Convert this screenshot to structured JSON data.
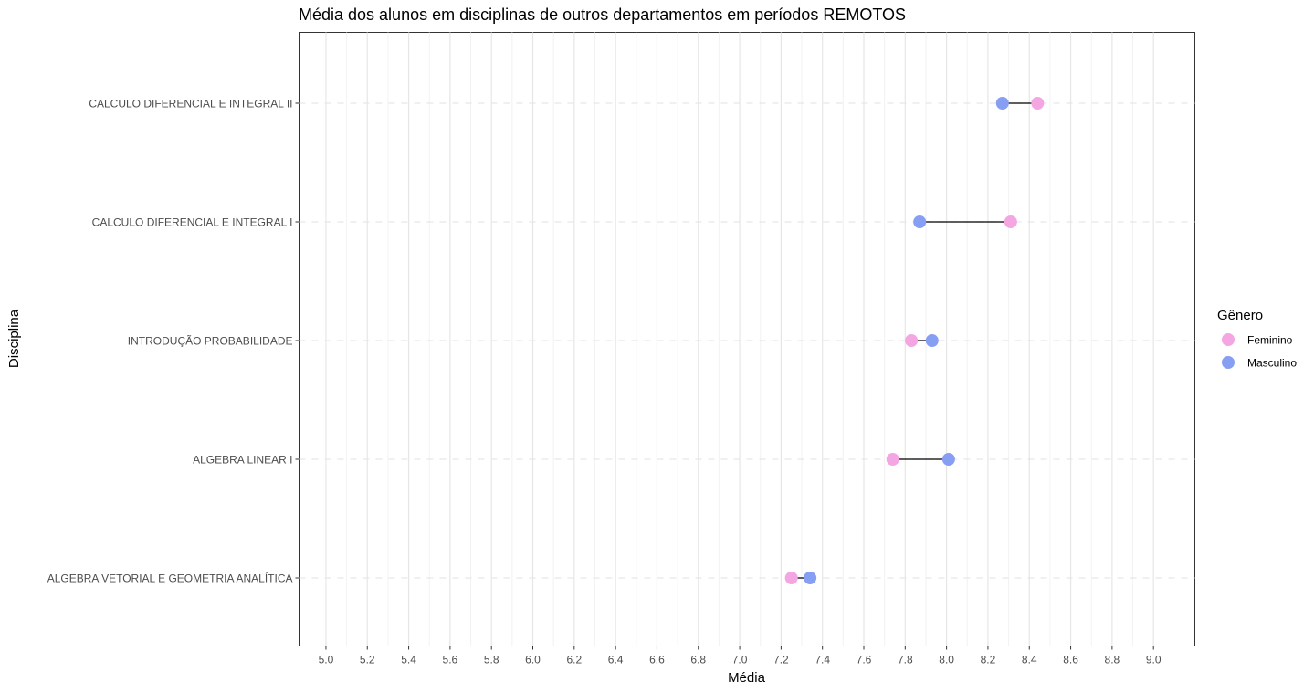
{
  "chart_data": {
    "type": "scatter",
    "subtype": "dumbbell",
    "title": "Média dos alunos em disciplinas de outros departamentos em períodos REMOTOS",
    "xlabel": "Média",
    "ylabel": "Disciplina",
    "xlim": [
      4.87,
      9.2
    ],
    "x_ticks": [
      "5.0",
      "5.2",
      "5.4",
      "5.6",
      "5.8",
      "6.0",
      "6.2",
      "6.4",
      "6.6",
      "6.8",
      "7.0",
      "7.2",
      "7.4",
      "7.6",
      "7.8",
      "8.0",
      "8.2",
      "8.4",
      "8.6",
      "8.8",
      "9.0"
    ],
    "categories": [
      "CALCULO DIFERENCIAL E INTEGRAL II",
      "CALCULO DIFERENCIAL E INTEGRAL I",
      "INTRODUÇÃO  PROBABILIDADE",
      "ALGEBRA LINEAR I",
      "ALGEBRA VETORIAL E GEOMETRIA ANALÍTICA"
    ],
    "series": [
      {
        "name": "Feminino",
        "color": "#f4a6e3",
        "values": [
          8.44,
          8.31,
          7.83,
          7.74,
          7.25
        ]
      },
      {
        "name": "Masculino",
        "color": "#879ff2",
        "values": [
          8.27,
          7.87,
          7.93,
          8.01,
          7.34
        ]
      }
    ],
    "legend": {
      "title": "Gênero",
      "position": "right"
    },
    "grid": true
  }
}
